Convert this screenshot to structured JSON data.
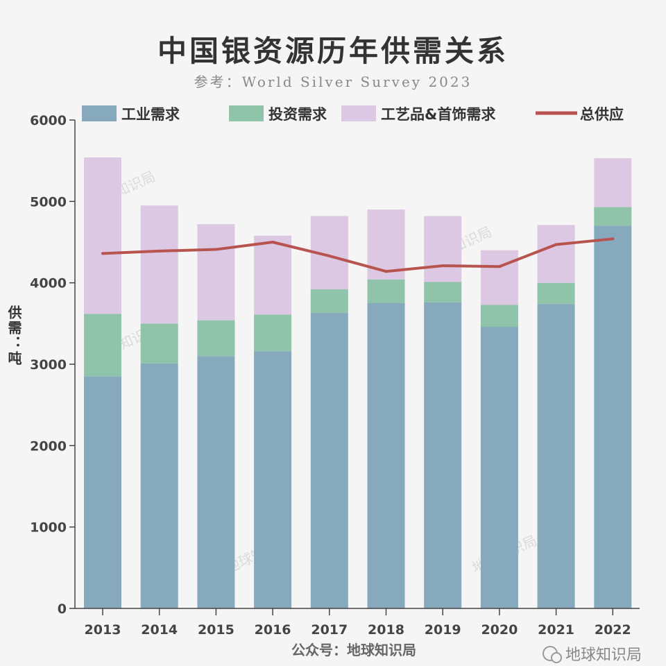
{
  "chart_data": {
    "type": "bar",
    "stacked": true,
    "title": "中国银资源历年供需关系",
    "subtitle": "参考：World Silver Survey 2023",
    "ylabel": "供需：吨",
    "xlabel": "",
    "ylim": [
      0,
      6000
    ],
    "yticks": [
      "0",
      "1000",
      "2000",
      "3000",
      "4000",
      "5000",
      "6000"
    ],
    "grid": false,
    "legend_position": "top",
    "categories": [
      "2013",
      "2014",
      "2015",
      "2016",
      "2017",
      "2018",
      "2019",
      "2020",
      "2021",
      "2022"
    ],
    "series": [
      {
        "name": "工业需求",
        "type": "bar",
        "color": "#87a9bd",
        "values": [
          2850,
          3010,
          3100,
          3160,
          3630,
          3750,
          3760,
          3460,
          3740,
          4700
        ]
      },
      {
        "name": "投资需求",
        "type": "bar",
        "color": "#8fc3aa",
        "values": [
          770,
          490,
          440,
          450,
          290,
          290,
          250,
          270,
          260,
          230
        ]
      },
      {
        "name": "工艺品&首饰需求",
        "type": "bar",
        "color": "#dcc8e2",
        "values": [
          1920,
          1450,
          1180,
          970,
          900,
          860,
          810,
          670,
          710,
          600
        ]
      },
      {
        "name": "总供应",
        "type": "line",
        "color": "#b85450",
        "values": [
          4360,
          4390,
          4410,
          4500,
          4330,
          4140,
          4210,
          4200,
          4470,
          4540
        ]
      }
    ]
  },
  "source": "公众号：地球知识局",
  "watermark": "地球知识局",
  "brand": "地球知识局"
}
